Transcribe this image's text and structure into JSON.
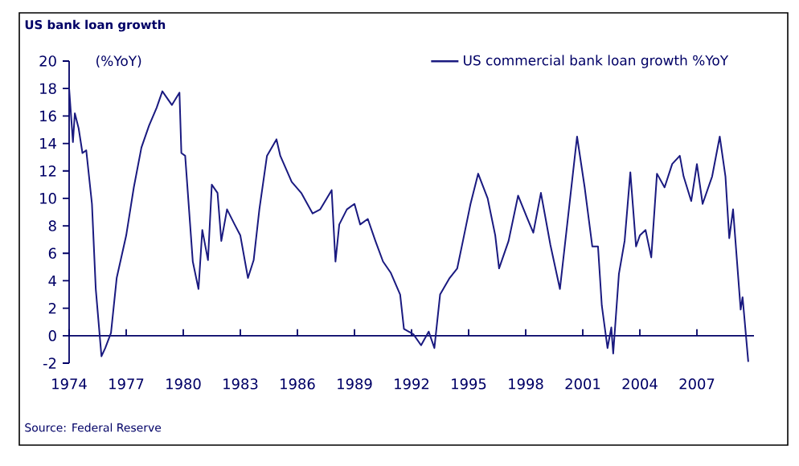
{
  "chart_data": {
    "type": "line",
    "title": "US bank loan growth",
    "ylabel": "(%YoY)",
    "annotations": [
      "Source: Federal Reserve"
    ],
    "x": [
      1974.0,
      1974.2,
      1974.3,
      1974.5,
      1974.7,
      1974.9,
      1975.2,
      1975.4,
      1975.7,
      1975.9,
      1976.2,
      1976.5,
      1977.0,
      1977.4,
      1977.8,
      1978.2,
      1978.6,
      1978.9,
      1979.4,
      1979.8,
      1979.9,
      1980.1,
      1980.5,
      1980.8,
      1981.0,
      1981.3,
      1981.5,
      1981.8,
      1982.0,
      1982.3,
      1982.7,
      1983.0,
      1983.4,
      1983.7,
      1984.0,
      1984.4,
      1984.9,
      1985.1,
      1985.7,
      1986.2,
      1986.8,
      1987.2,
      1987.8,
      1988.0,
      1988.2,
      1988.6,
      1989.0,
      1989.3,
      1989.7,
      1990.1,
      1990.5,
      1990.9,
      1991.4,
      1991.6,
      1992.1,
      1992.5,
      1992.9,
      1993.2,
      1993.5,
      1994.0,
      1994.4,
      1994.7,
      1995.1,
      1995.5,
      1996.0,
      1996.4,
      1996.6,
      1997.1,
      1997.6,
      1998.1,
      1998.4,
      1998.8,
      1999.3,
      1999.8,
      2000.4,
      2000.7,
      2001.1,
      2001.5,
      2001.8,
      2002.0,
      2002.3,
      2002.5,
      2002.6,
      2002.9,
      2003.2,
      2003.5,
      2003.8,
      2004.0,
      2004.3,
      2004.6,
      2004.9,
      2005.3,
      2005.7,
      2006.1,
      2006.3,
      2006.7,
      2007.0,
      2007.3,
      2007.8,
      2008.2,
      2008.5,
      2008.7,
      2008.9,
      2009.3,
      2009.4,
      2009.7
    ],
    "series": [
      {
        "name": "US commercial bank loan growth %YoY",
        "color": "#1a1a80",
        "values": [
          18.0,
          14.1,
          16.2,
          15.1,
          13.3,
          13.5,
          9.6,
          3.4,
          -1.5,
          -0.9,
          0.2,
          4.2,
          7.3,
          10.8,
          13.7,
          15.3,
          16.6,
          17.8,
          16.8,
          17.7,
          13.3,
          13.1,
          5.4,
          3.4,
          7.7,
          5.5,
          11.0,
          10.4,
          6.9,
          9.2,
          8.1,
          7.3,
          4.2,
          5.5,
          9.2,
          13.1,
          14.3,
          13.1,
          11.2,
          10.4,
          8.9,
          9.2,
          10.6,
          5.4,
          8.1,
          9.2,
          9.6,
          8.1,
          8.5,
          6.9,
          5.4,
          4.6,
          3.0,
          0.5,
          0.1,
          -0.7,
          0.3,
          -0.9,
          3.0,
          4.2,
          4.9,
          6.9,
          9.6,
          11.8,
          10.0,
          7.3,
          4.9,
          6.9,
          10.2,
          8.5,
          7.5,
          10.4,
          6.6,
          3.4,
          10.8,
          14.5,
          10.8,
          6.5,
          6.5,
          2.2,
          -0.9,
          0.6,
          -1.3,
          4.5,
          6.9,
          11.9,
          6.5,
          7.3,
          7.7,
          5.7,
          11.8,
          10.8,
          12.5,
          13.1,
          11.6,
          9.8,
          12.5,
          9.6,
          11.6,
          14.5,
          11.6,
          7.1,
          9.2,
          1.9,
          2.8,
          -1.9
        ]
      }
    ],
    "xlim": [
      1974,
      2010
    ],
    "ylim": [
      -2,
      20
    ],
    "xticks": [
      1974,
      1977,
      1980,
      1983,
      1986,
      1989,
      1992,
      1995,
      1998,
      2001,
      2004,
      2007
    ],
    "yticks": [
      -2,
      0,
      2,
      4,
      6,
      8,
      10,
      12,
      14,
      16,
      18,
      20
    ],
    "ref_lines": [
      {
        "axis": "y",
        "value": 0,
        "color": "#000066"
      }
    ],
    "legend": "top right"
  }
}
